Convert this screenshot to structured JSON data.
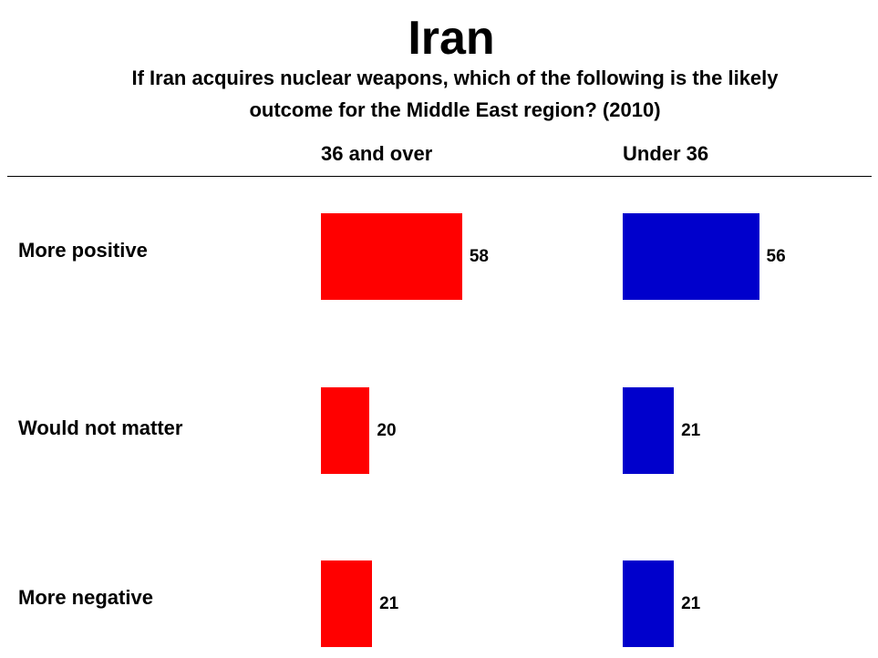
{
  "chart_data": {
    "type": "bar",
    "title": "Iran",
    "subtitle": [
      "If Iran acquires nuclear weapons, which of the following is the likely",
      "outcome for the Middle East region? (2010)"
    ],
    "categories": [
      "More positive",
      "Would not matter",
      "More negative"
    ],
    "series": [
      {
        "name": "36 and over",
        "color": "#ff0000",
        "values": [
          58,
          20,
          21
        ]
      },
      {
        "name": "Under 36",
        "color": "#0000cc",
        "values": [
          56,
          21,
          21
        ]
      }
    ]
  }
}
